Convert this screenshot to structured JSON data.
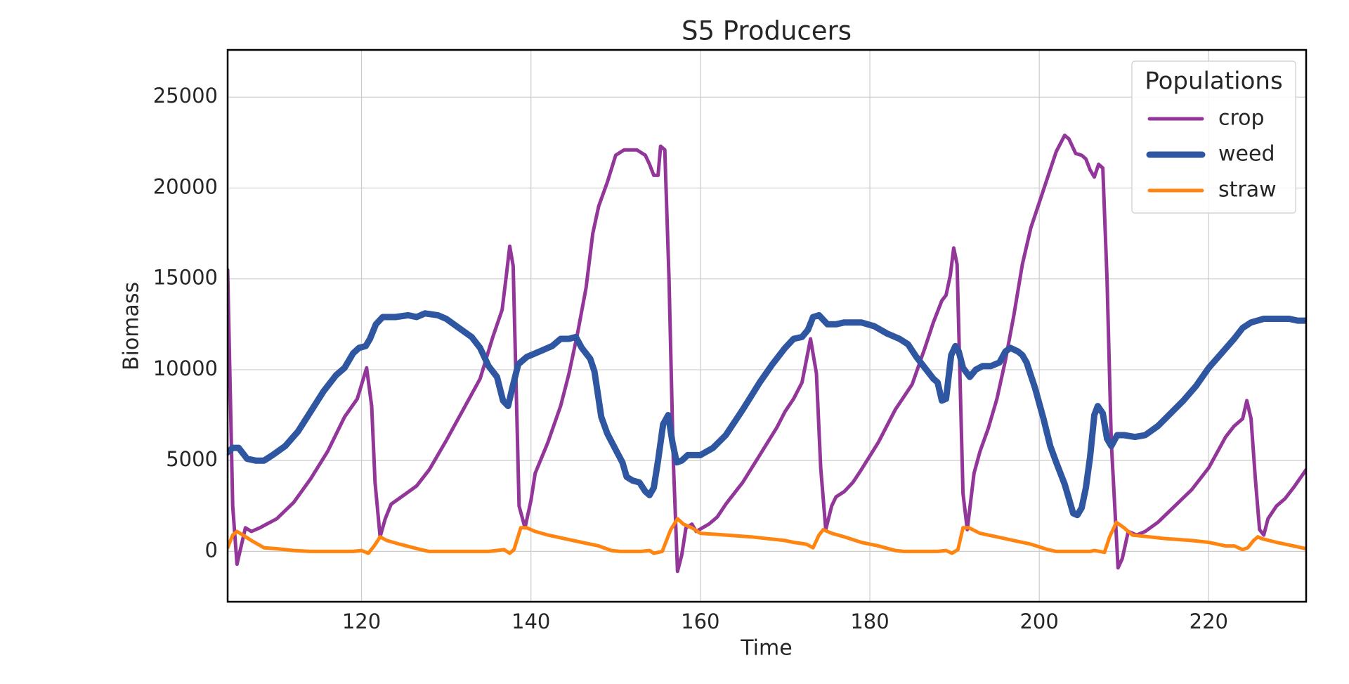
{
  "chart_data": {
    "type": "line",
    "title": "S5 Producers",
    "xlabel": "Time",
    "ylabel": "Biomass",
    "xlim": [
      104.2,
      231.5
    ],
    "ylim": [
      -2770,
      27600
    ],
    "xticks": [
      120,
      140,
      160,
      180,
      200,
      220
    ],
    "yticks": [
      0,
      5000,
      10000,
      15000,
      20000,
      25000
    ],
    "grid": true,
    "legend_title": "Populations",
    "legend_loc": "upper right",
    "series": [
      {
        "name": "crop",
        "color": "#93369a",
        "width": 5,
        "x": [
          104.2,
          104.8,
          105.3,
          106.3,
          107,
          108,
          110,
          112,
          114,
          116,
          118,
          119.5,
          120.6,
          121.2,
          121.6,
          122.2,
          122.8,
          123.5,
          125,
          126.5,
          128,
          130,
          132,
          134,
          135.5,
          136.6,
          137.1,
          137.5,
          137.9,
          138.6,
          139.3,
          140,
          140.5,
          142,
          143.5,
          144.5,
          145.5,
          146.5,
          147.3,
          148,
          149,
          150,
          151,
          152.5,
          153.5,
          154,
          154.5,
          155,
          155.3,
          155.8,
          156.3,
          156.8,
          157.3,
          157.8,
          158.3,
          159,
          159.5,
          161,
          162,
          163,
          165,
          167,
          169,
          170,
          171,
          172,
          173,
          173.7,
          174.2,
          174.8,
          175.5,
          176,
          177,
          178,
          179,
          181,
          183,
          185,
          186.5,
          187.5,
          188.5,
          189,
          189.5,
          189.9,
          190.3,
          191,
          191.5,
          192.3,
          193,
          194,
          195,
          196,
          197,
          198,
          199,
          200,
          201,
          202,
          203,
          203.5,
          204.3,
          205,
          205.5,
          206,
          206.5,
          207,
          207.5,
          208,
          208.5,
          209.3,
          209.8,
          210.5,
          211.5,
          212.5,
          214,
          216,
          218,
          220,
          222,
          223,
          224,
          224.5,
          225,
          225.5,
          226,
          226.5,
          227,
          228,
          229,
          230,
          231.5
        ],
        "values": [
          15500,
          2500,
          -700,
          1300,
          1100,
          1300,
          1800,
          2700,
          4000,
          5500,
          7400,
          8400,
          10100,
          8000,
          3800,
          800,
          1800,
          2600,
          3100,
          3600,
          4500,
          6100,
          7800,
          9500,
          11800,
          13300,
          15200,
          16800,
          15700,
          2500,
          1300,
          2800,
          4300,
          6000,
          8000,
          9800,
          12000,
          14500,
          17500,
          19000,
          20300,
          21800,
          22100,
          22100,
          21800,
          21300,
          20700,
          20700,
          22300,
          22100,
          15000,
          5000,
          -1100,
          -200,
          1300,
          1500,
          1100,
          1500,
          1900,
          2600,
          3800,
          5300,
          6800,
          7700,
          8400,
          9300,
          11700,
          9800,
          4600,
          1200,
          2500,
          3000,
          3300,
          3800,
          4500,
          6000,
          7800,
          9200,
          11200,
          12600,
          13800,
          14100,
          15200,
          16700,
          15800,
          3200,
          1200,
          4300,
          5500,
          6800,
          8400,
          10500,
          13000,
          15800,
          17800,
          19200,
          20600,
          22000,
          22900,
          22700,
          21900,
          21800,
          21600,
          21000,
          20600,
          21300,
          21100,
          15000,
          6000,
          -900,
          -400,
          1100,
          900,
          1100,
          1600,
          2500,
          3400,
          4600,
          6300,
          6900,
          7300,
          8300,
          7300,
          4000,
          1200,
          900,
          1800,
          2500,
          2900,
          3500,
          4500
        ]
      },
      {
        "name": "weed",
        "color": "#2f56a0",
        "width": 9,
        "x": [
          104.2,
          104.8,
          105.5,
          106.5,
          107.5,
          108.5,
          109.5,
          111,
          112.5,
          114,
          115.5,
          117,
          118,
          119,
          119.7,
          120.5,
          121,
          121.7,
          122.5,
          124,
          125.5,
          126.5,
          127.5,
          129,
          130,
          131.5,
          133,
          134,
          135,
          136,
          136.7,
          137.3,
          137.8,
          138.5,
          139.5,
          141,
          142.5,
          143.5,
          144.5,
          145.3,
          146,
          147,
          147.5,
          148.3,
          149,
          150,
          150.8,
          151.3,
          152,
          152.8,
          153.5,
          154,
          154.5,
          155,
          155.6,
          156.2,
          156.7,
          157.2,
          157.8,
          158.5,
          160,
          161.5,
          163,
          165,
          167,
          168.5,
          170,
          171,
          172,
          172.7,
          173.3,
          174,
          175,
          176,
          177,
          179,
          180.5,
          182,
          183.5,
          184.5,
          185.5,
          186.5,
          187.5,
          188,
          188.5,
          189,
          189.6,
          190.1,
          190.5,
          191,
          191.8,
          192.5,
          193.3,
          194.3,
          195.3,
          196,
          196.6,
          197.5,
          198,
          198.5,
          199.5,
          200.5,
          201.3,
          202,
          203,
          203.5,
          204,
          204.5,
          205,
          205.5,
          206,
          206.5,
          206.9,
          207.5,
          208,
          208.5,
          209.2,
          210,
          211.3,
          212.5,
          214,
          215.5,
          217,
          218.5,
          220,
          221.5,
          223,
          224,
          225,
          226.5,
          228,
          229.5,
          230.5,
          231.5
        ],
        "values": [
          5450,
          5700,
          5700,
          5100,
          5000,
          5000,
          5300,
          5800,
          6600,
          7700,
          8800,
          9700,
          10100,
          10900,
          11200,
          11300,
          11700,
          12500,
          12900,
          12900,
          13000,
          12900,
          13100,
          13000,
          12800,
          12300,
          11800,
          11200,
          10200,
          9600,
          8300,
          8000,
          9000,
          10300,
          10700,
          11000,
          11300,
          11700,
          11700,
          11800,
          11200,
          10600,
          9900,
          7400,
          6500,
          5600,
          4900,
          4100,
          3900,
          3800,
          3300,
          3100,
          3500,
          5000,
          7000,
          7500,
          6000,
          4900,
          5000,
          5300,
          5300,
          5700,
          6400,
          7800,
          9300,
          10300,
          11200,
          11700,
          11800,
          12200,
          12900,
          13000,
          12500,
          12500,
          12600,
          12600,
          12400,
          12000,
          11700,
          11400,
          10700,
          10100,
          9500,
          9300,
          8300,
          8400,
          10800,
          11300,
          11000,
          10100,
          9600,
          10000,
          10200,
          10200,
          10400,
          11000,
          11200,
          11000,
          10800,
          10400,
          9000,
          7300,
          5800,
          4900,
          3700,
          2900,
          2100,
          2000,
          2400,
          3500,
          5200,
          7500,
          8000,
          7600,
          6200,
          5800,
          6400,
          6400,
          6300,
          6400,
          6900,
          7600,
          8300,
          9100,
          10100,
          10900,
          11700,
          12300,
          12600,
          12800,
          12800,
          12800,
          12700,
          12700
        ]
      },
      {
        "name": "straw",
        "color": "#ff8410",
        "width": 5,
        "x": [
          104.2,
          104.8,
          105.3,
          106,
          107,
          108.5,
          110,
          112,
          114,
          119,
          120,
          120.8,
          121.5,
          122.2,
          123,
          124.5,
          127,
          128,
          135,
          136,
          136.8,
          137.5,
          138,
          138.8,
          139.5,
          140.5,
          142,
          144,
          146,
          148,
          149.5,
          150.5,
          153,
          154,
          154.5,
          155.5,
          156.5,
          157.3,
          158,
          159,
          160,
          163,
          166,
          168,
          170,
          171,
          172.5,
          173.3,
          174,
          174.5,
          175.5,
          177,
          179,
          181,
          183,
          184,
          188,
          189,
          189.7,
          190.4,
          191,
          191.7,
          193,
          195,
          197,
          199,
          201,
          202,
          206,
          206.5,
          207.7,
          208.3,
          209.1,
          210,
          211,
          213,
          215,
          218,
          220,
          222,
          223,
          224,
          224.6,
          225.3,
          225.8,
          226.3,
          228,
          230,
          231.5
        ],
        "values": [
          200,
          900,
          1100,
          900,
          600,
          200,
          150,
          50,
          0,
          0,
          50,
          -100,
          300,
          800,
          600,
          400,
          100,
          0,
          0,
          50,
          100,
          -100,
          100,
          1300,
          1300,
          1100,
          900,
          700,
          500,
          300,
          50,
          0,
          0,
          50,
          -100,
          0,
          1200,
          1800,
          1500,
          1300,
          1000,
          900,
          800,
          700,
          600,
          500,
          400,
          200,
          900,
          1200,
          1000,
          800,
          500,
          300,
          50,
          0,
          0,
          50,
          -100,
          100,
          1300,
          1300,
          1000,
          800,
          600,
          400,
          100,
          0,
          0,
          50,
          -50,
          800,
          1600,
          1300,
          900,
          800,
          700,
          600,
          500,
          300,
          300,
          100,
          200,
          600,
          800,
          700,
          500,
          300,
          150
        ]
      }
    ]
  }
}
